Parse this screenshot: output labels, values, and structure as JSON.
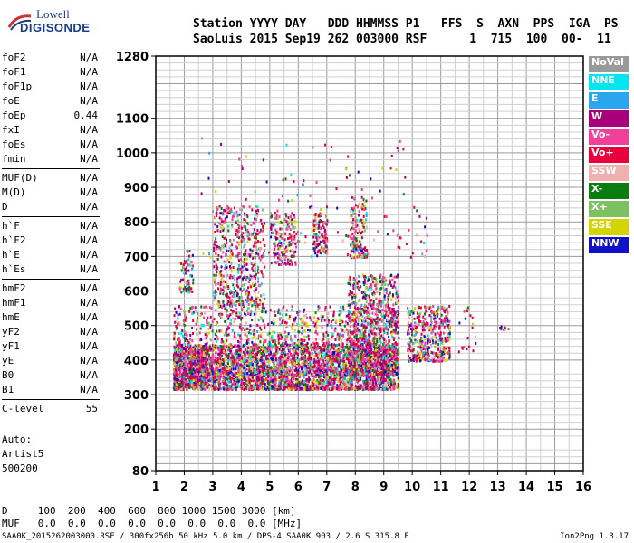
{
  "logo": {
    "line1": "Lowell",
    "line2": "DIGISONDE"
  },
  "header": {
    "line1": "Station YYYY DAY   DDD HHMMSS P1   FFS  S  AXN  PPS  IGA  PS",
    "line2": "SaoLuis 2015 Sep19 262 003000 RSF      1  715  100  00-  11"
  },
  "params": [
    [
      {
        "label": "foF2",
        "value": "N/A"
      },
      {
        "label": "foF1",
        "value": "N/A"
      },
      {
        "label": "foF1p",
        "value": "N/A"
      },
      {
        "label": "foE",
        "value": "N/A"
      },
      {
        "label": "foEp",
        "value": "0.44"
      },
      {
        "label": "fxI",
        "value": "N/A"
      },
      {
        "label": "foEs",
        "value": "N/A"
      },
      {
        "label": "fmin",
        "value": "N/A"
      }
    ],
    [
      {
        "label": "MUF(D)",
        "value": "N/A"
      },
      {
        "label": "M(D)",
        "value": "N/A"
      },
      {
        "label": "D",
        "value": "N/A"
      }
    ],
    [
      {
        "label": "h`F",
        "value": "N/A"
      },
      {
        "label": "h`F2",
        "value": "N/A"
      },
      {
        "label": "h`E",
        "value": "N/A"
      },
      {
        "label": "h`Es",
        "value": "N/A"
      }
    ],
    [
      {
        "label": "hmF2",
        "value": "N/A"
      },
      {
        "label": "hmF1",
        "value": "N/A"
      },
      {
        "label": "hmE",
        "value": "N/A"
      },
      {
        "label": "yF2",
        "value": "N/A"
      },
      {
        "label": "yF1",
        "value": "N/A"
      },
      {
        "label": "yE",
        "value": "N/A"
      },
      {
        "label": "B0",
        "value": "N/A"
      },
      {
        "label": "B1",
        "value": "N/A"
      }
    ],
    [
      {
        "label": "C-level",
        "value": "55"
      }
    ]
  ],
  "auto": {
    "line1": "Auto:",
    "line2": "Artist5",
    "line3": "500200"
  },
  "legend": [
    {
      "label": "NoVal",
      "color": "#9a9a9a"
    },
    {
      "label": "NNE",
      "color": "#00e5f0"
    },
    {
      "label": "E",
      "color": "#2aa5ee"
    },
    {
      "label": "W",
      "color": "#a8007a"
    },
    {
      "label": "Vo-",
      "color": "#f0409a"
    },
    {
      "label": "Vo+",
      "color": "#e8003c"
    },
    {
      "label": "SSW",
      "color": "#f0b0b0"
    },
    {
      "label": "X-",
      "color": "#0a7c10"
    },
    {
      "label": "X+",
      "color": "#7cc060"
    },
    {
      "label": "SSE",
      "color": "#d4d400"
    },
    {
      "label": "NNW",
      "color": "#1010c8"
    }
  ],
  "dtable": {
    "line1": "D     100  200  400  600  800 1000 1500 3000 [km]",
    "line2": "MUF   0.0  0.0  0.0  0.0  0.0  0.0  0.0  0.0 [MHz]"
  },
  "footer": "SAA0K_2015262003000.RSF / 300fx256h 50 kHz 5.0 km / DPS-4 SAA0K 903 / 2.6 S 315.8 E",
  "version": "Ion2Png 1.3.17",
  "chart_data": {
    "type": "scatter",
    "xlim": [
      1,
      16
    ],
    "ylim": [
      80,
      1280
    ],
    "xticks": [
      1,
      2,
      3,
      4,
      5,
      6,
      7,
      8,
      9,
      10,
      11,
      12,
      13,
      14,
      15,
      16
    ],
    "yticks": [
      80,
      200,
      300,
      400,
      500,
      600,
      700,
      800,
      900,
      1000,
      1100,
      1280
    ],
    "grid": true,
    "clusters": [
      {
        "x": [
          1.6,
          9.5
        ],
        "y": [
          318,
          450
        ],
        "n": 3200
      },
      {
        "x": [
          1.6,
          9.5
        ],
        "y": [
          360,
          560
        ],
        "n": 1400
      },
      {
        "x": [
          1.6,
          2.8
        ],
        "y": [
          330,
          450
        ],
        "n": 500
      },
      {
        "x": [
          7.7,
          9.5
        ],
        "y": [
          360,
          650
        ],
        "n": 900
      },
      {
        "x": [
          9.8,
          11.3
        ],
        "y": [
          400,
          560
        ],
        "n": 400
      },
      {
        "x": [
          3.0,
          4.8
        ],
        "y": [
          560,
          850
        ],
        "n": 500
      },
      {
        "x": [
          5.0,
          5.9
        ],
        "y": [
          680,
          830
        ],
        "n": 160
      },
      {
        "x": [
          6.5,
          7.0
        ],
        "y": [
          710,
          830
        ],
        "n": 120
      },
      {
        "x": [
          7.8,
          8.4
        ],
        "y": [
          700,
          880
        ],
        "n": 150
      },
      {
        "x": [
          1.8,
          2.3
        ],
        "y": [
          600,
          720
        ],
        "n": 70
      },
      {
        "x": [
          11.6,
          12.2
        ],
        "y": [
          420,
          560
        ],
        "n": 20
      },
      {
        "x": [
          12.8,
          13.4
        ],
        "y": [
          490,
          505
        ],
        "n": 8
      },
      {
        "x": [
          2.5,
          10.5
        ],
        "y": [
          700,
          1050
        ],
        "n": 140
      }
    ]
  }
}
